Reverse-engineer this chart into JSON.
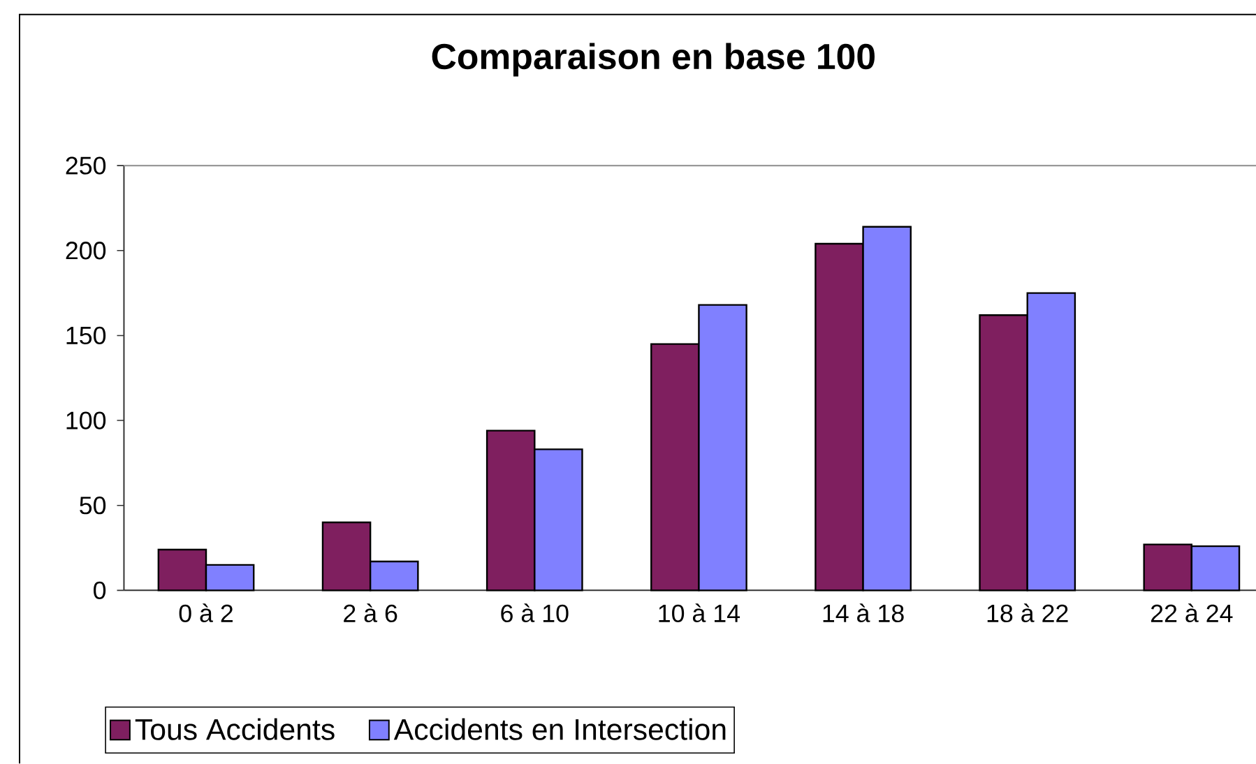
{
  "chart_data": {
    "type": "bar",
    "title": "Comparaison en base 100",
    "categories": [
      "0 à 2",
      "2 à 6",
      "6 à 10",
      "10 à 14",
      "14 à 18",
      "18 à 22",
      "22 à 24"
    ],
    "series": [
      {
        "name": "Tous Accidents",
        "color": "#7f1f5f",
        "values": [
          24,
          40,
          94,
          145,
          204,
          162,
          27
        ]
      },
      {
        "name": "Accidents en Intersection",
        "color": "#8080ff",
        "values": [
          15,
          17,
          83,
          168,
          214,
          175,
          26
        ]
      }
    ],
    "ylim": [
      0,
      250
    ],
    "yticks": [
      0,
      50,
      100,
      150,
      200,
      250
    ],
    "legend": "bottom left"
  }
}
